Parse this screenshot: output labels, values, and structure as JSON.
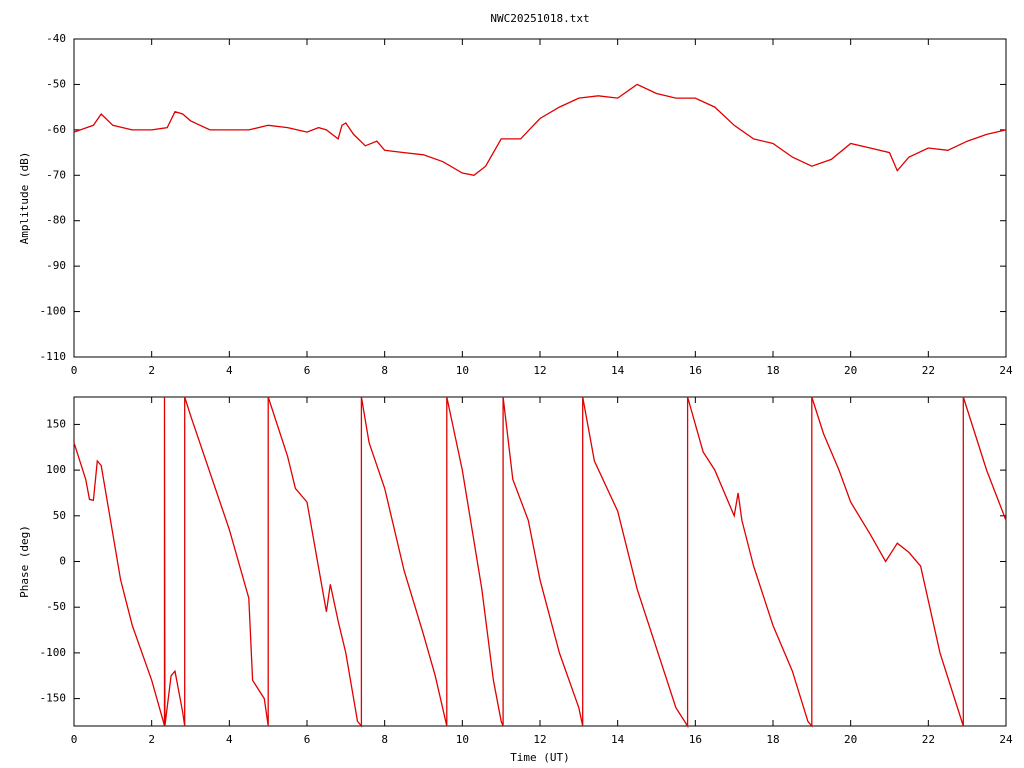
{
  "chart_data": [
    {
      "type": "line",
      "title": "NWC20251018.txt",
      "ylabel": "Amplitude (dB)",
      "color": "#e00000",
      "x": [
        0,
        0.5,
        0.7,
        1,
        1.5,
        2,
        2.4,
        2.6,
        2.8,
        3,
        3.5,
        4,
        4.5,
        5,
        5.5,
        6,
        6.3,
        6.5,
        6.8,
        6.9,
        7,
        7.2,
        7.5,
        7.8,
        8,
        8.5,
        9,
        9.5,
        10,
        10.3,
        10.6,
        11,
        11.5,
        12,
        12.5,
        13,
        13.5,
        14,
        14.5,
        15,
        15.5,
        16,
        16.5,
        17,
        17.5,
        18,
        18.5,
        19,
        19.5,
        20,
        20.5,
        21,
        21.2,
        21.5,
        22,
        22.5,
        23,
        23.5,
        24
      ],
      "values": [
        -60.5,
        -59,
        -56.5,
        -59,
        -60,
        -60,
        -59.5,
        -56,
        -56.5,
        -58,
        -60,
        -60,
        -60,
        -59,
        -59.5,
        -60.5,
        -59.5,
        -60,
        -62,
        -59,
        -58.5,
        -61,
        -63.5,
        -62.5,
        -64.5,
        -65,
        -65.5,
        -67,
        -69.5,
        -70,
        -68,
        -62,
        -62,
        -57.5,
        -55,
        -53,
        -52.5,
        -53,
        -50,
        -52,
        -53,
        -53,
        -55,
        -59,
        -62,
        -63,
        -66,
        -68,
        -66.5,
        -63,
        -64,
        -65,
        -69,
        -66,
        -64,
        -64.5,
        -62.5,
        -61,
        -60
      ],
      "xlim": [
        0,
        24
      ],
      "xticks": [
        0,
        2,
        4,
        6,
        8,
        10,
        12,
        14,
        16,
        18,
        20,
        22,
        24
      ],
      "ylim": [
        -110,
        -40
      ],
      "yticks": [
        -110,
        -100,
        -90,
        -80,
        -70,
        -60,
        -50,
        -40
      ]
    },
    {
      "type": "line",
      "xlabel": "Time (UT)",
      "ylabel": "Phase (deg)",
      "color": "#e00000",
      "x": [
        0,
        0.3,
        0.4,
        0.5,
        0.6,
        0.7,
        1.2,
        1.5,
        2,
        2.3,
        2.33,
        2.33,
        2.34,
        2.5,
        2.6,
        2.8,
        2.85,
        2.85,
        3,
        4,
        4.5,
        4.6,
        4.9,
        5,
        5,
        5.5,
        5.7,
        6,
        6.5,
        6.6,
        6.8,
        7,
        7.3,
        7.4,
        7.4,
        7.6,
        8,
        8.5,
        9,
        9.3,
        9.6,
        9.6,
        10,
        10.5,
        10.8,
        11,
        11.05,
        11.05,
        11.3,
        11.7,
        12,
        12.5,
        13,
        13.1,
        13.1,
        13.4,
        14,
        14.5,
        15,
        15.5,
        15.8,
        15.8,
        16.2,
        16.5,
        17,
        17.1,
        17.2,
        17.5,
        18,
        18.5,
        18.9,
        19,
        19,
        19.3,
        19.7,
        20,
        20.5,
        20.9,
        21.2,
        21.5,
        21.8,
        22.3,
        22.9,
        22.9,
        23.5,
        24
      ],
      "values": [
        130,
        90,
        68,
        67,
        110,
        105,
        -20,
        -70,
        -130,
        -175,
        -180,
        180,
        -180,
        -125,
        -120,
        -165,
        -180,
        180,
        160,
        35,
        -40,
        -130,
        -150,
        -180,
        180,
        115,
        80,
        65,
        -55,
        -25,
        -65,
        -100,
        -175,
        -180,
        180,
        130,
        80,
        -10,
        -80,
        -125,
        -180,
        180,
        100,
        -30,
        -130,
        -175,
        -180,
        180,
        90,
        45,
        -20,
        -100,
        -160,
        -180,
        180,
        110,
        55,
        -30,
        -95,
        -160,
        -180,
        180,
        120,
        100,
        50,
        75,
        45,
        -5,
        -70,
        -120,
        -175,
        -180,
        180,
        140,
        100,
        65,
        30,
        0,
        20,
        10,
        -5,
        -100,
        -180,
        180,
        100,
        45
      ],
      "xlim": [
        0,
        24
      ],
      "xticks": [
        0,
        2,
        4,
        6,
        8,
        10,
        12,
        14,
        16,
        18,
        20,
        22,
        24
      ],
      "ylim": [
        -180,
        180
      ],
      "yticks": [
        -150,
        -100,
        -50,
        0,
        50,
        100,
        150
      ]
    }
  ]
}
